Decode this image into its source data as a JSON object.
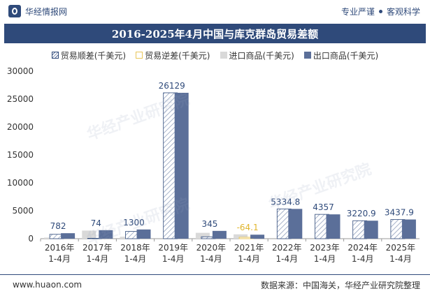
{
  "header": {
    "brand": "华经情报网",
    "tagline_left": "专业严谨",
    "tagline_right": "客观科学"
  },
  "chart_title": "2016-2025年4月中国与库克群岛贸易差额",
  "legend": {
    "surplus": "贸易顺差(千美元)",
    "deficit": "贸易逆差(千美元)",
    "imports": "进口商品(千美元)",
    "exports": "出口商品(千美元)"
  },
  "colors": {
    "navy": "#2f4a7a",
    "export_bar": "#5b6f99",
    "import_bar": "#d9d9d9",
    "deficit_label": "#e0b52c"
  },
  "footer": {
    "website": "www.huaon.com",
    "source": "数据来源：中国海关，华经产业研究院整理"
  },
  "watermark_text": "华经产业研究院",
  "chart_data": {
    "type": "bar",
    "categories": [
      "2016年\n1-4月",
      "2017年\n1-4月",
      "2018年\n1-4月",
      "2019年\n1-4月",
      "2020年\n1-4月",
      "2021年\n1-4月",
      "2022年\n1-4月",
      "2023年\n1-4月",
      "2024年\n1-4月",
      "2025年\n1-4月"
    ],
    "balance_labels": [
      "782",
      "74",
      "1300",
      "26129",
      "345",
      "-64.1",
      "5334.8",
      "4357",
      "3220.9",
      "3437.9"
    ],
    "series": [
      {
        "name": "贸易顺差(千美元)",
        "values": [
          782,
          74,
          1300,
          26129,
          345,
          null,
          5334.8,
          4357,
          3220.9,
          3437.9
        ]
      },
      {
        "name": "贸易逆差(千美元)",
        "values": [
          null,
          null,
          null,
          null,
          null,
          -64.1,
          null,
          null,
          null,
          null
        ]
      },
      {
        "name": "进口商品(千美元)",
        "values": [
          200,
          1450,
          350,
          0,
          1050,
          780,
          0,
          0,
          0,
          0
        ]
      },
      {
        "name": "出口商品(千美元)",
        "values": [
          982,
          1524,
          1650,
          26129,
          1395,
          716,
          5334.8,
          4357,
          3220.9,
          3437.9
        ]
      }
    ],
    "yticks": [
      0,
      5000,
      10000,
      15000,
      20000,
      25000,
      30000
    ],
    "ylim": [
      0,
      30000
    ],
    "legend_position": "top"
  }
}
